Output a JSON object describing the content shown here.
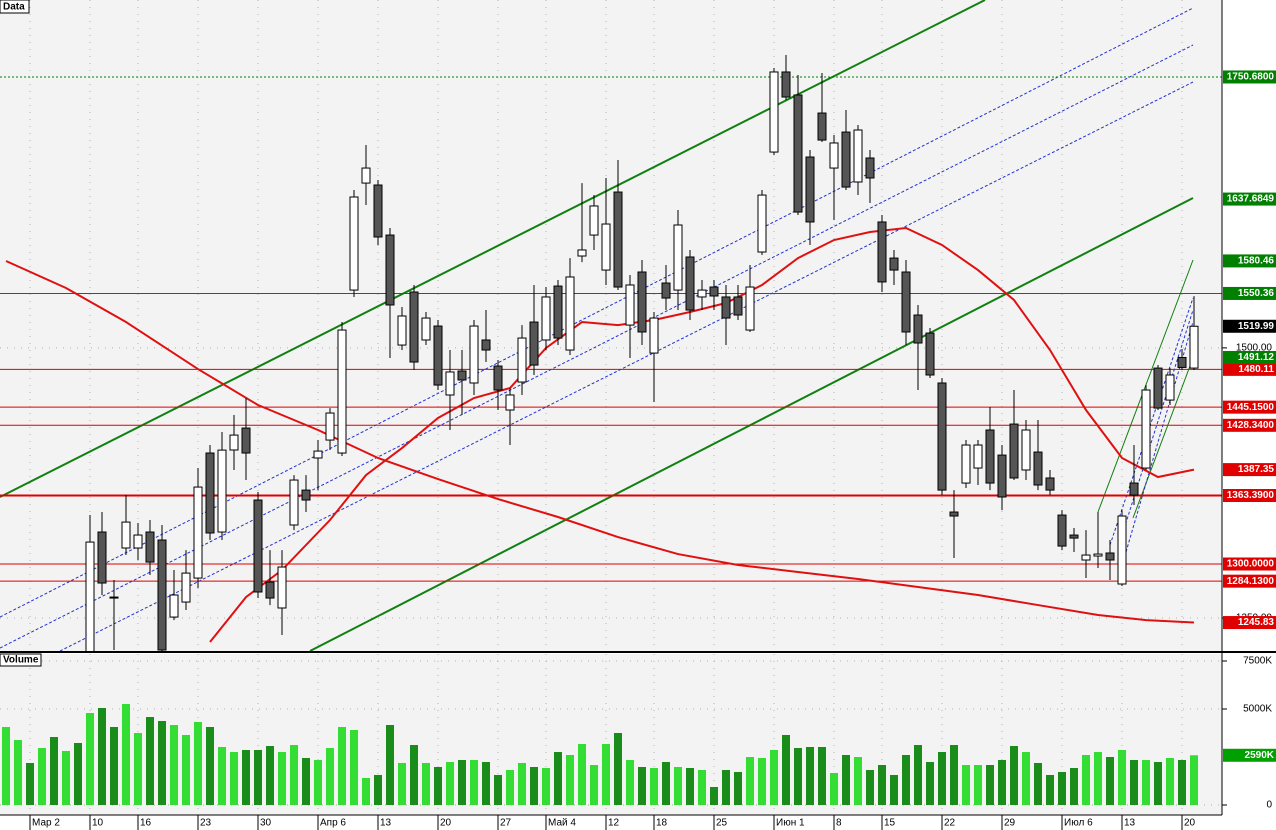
{
  "chart_data": {
    "type": "candlestick",
    "panel_title": "Data",
    "grid": true,
    "categories": [
      null,
      null,
      null,
      "Мар 2",
      null,
      null,
      null,
      null,
      "10",
      null,
      null,
      null,
      "16",
      null,
      null,
      null,
      null,
      "23",
      null,
      null,
      null,
      null,
      "30",
      null,
      null,
      null,
      null,
      "Апр 6",
      null,
      null,
      null,
      null,
      "13",
      null,
      null,
      null,
      null,
      "20",
      null,
      null,
      null,
      null,
      "27",
      null,
      null,
      null,
      "Май 4",
      null,
      null,
      null,
      null,
      "12",
      null,
      null,
      null,
      "18",
      null,
      null,
      null,
      null,
      "25",
      null,
      null,
      null,
      null,
      "Июн 1",
      null,
      null,
      null,
      null,
      "8",
      null,
      null,
      null,
      "15",
      null,
      null,
      null,
      null,
      "22",
      null,
      null,
      null,
      null,
      "29",
      null,
      null,
      null,
      null,
      "Июл 6",
      null,
      null,
      null,
      null,
      "13",
      null,
      null,
      null,
      null,
      "20"
    ],
    "ohlc": [
      null,
      null,
      null,
      null,
      null,
      null,
      null,
      [
        1202,
        1345.3,
        1192.6,
        1320.3
      ],
      [
        1329.6,
        1348.1,
        1271.3,
        1282.4
      ],
      [
        1269.4,
        1285.2,
        1220.4,
        1268.5
      ],
      [
        1314.8,
        1363.8,
        1308.3,
        1338.8
      ],
      [
        1314.8,
        1337.9,
        1303.7,
        1326.8
      ],
      [
        1329.6,
        1340.7,
        1289.8,
        1301.8
      ],
      [
        1322.2,
        1336.1,
        1218.5,
        1220.4
      ],
      [
        1250.9,
        1294.4,
        1248.1,
        1271.3
      ],
      [
        1264.8,
        1312.9,
        1257.4,
        1291.6
      ],
      [
        1287.0,
        1388.8,
        1277.8,
        1371.2
      ],
      [
        1402.7,
        1410.1,
        1322.2,
        1328.7
      ],
      [
        1329.6,
        1422.1,
        1322.2,
        1405.4
      ],
      [
        1405.5,
        1437.9,
        1387.0,
        1419.3
      ],
      [
        1425.8,
        1453.6,
        1377.7,
        1402.7
      ],
      [
        1359.2,
        1366.6,
        1268.5,
        1274.1
      ],
      [
        1283.3,
        1312.9,
        1262.0,
        1268.5
      ],
      [
        1259.3,
        1312.9,
        1234.3,
        1297.2
      ],
      [
        1336.1,
        1382.3,
        1331.4,
        1377.7
      ],
      [
        1368.4,
        1382.3,
        1348.1,
        1359.2
      ],
      [
        1398.1,
        1414.7,
        1368.4,
        1404.5
      ],
      [
        1414.7,
        1444.3,
        1405.5,
        1439.7
      ],
      [
        1402.7,
        1523.9,
        1399.9,
        1516.5
      ],
      [
        1553.5,
        1646.1,
        1547.1,
        1639.6
      ],
      [
        1652.5,
        1687.7,
        1632.2,
        1666.4
      ],
      [
        1650.7,
        1655.3,
        1595.2,
        1602.6
      ],
      [
        1604.4,
        1610.9,
        1490.6,
        1539.7
      ],
      [
        1502.6,
        1537.8,
        1498.0,
        1529.5
      ],
      [
        1551.7,
        1558.2,
        1479.5,
        1486.9
      ],
      [
        1507.3,
        1533.2,
        1502.6,
        1527.6
      ],
      [
        1520.2,
        1525.8,
        1461.0,
        1465.6
      ],
      [
        1456.4,
        1498.0,
        1424.0,
        1477.7
      ],
      [
        1478.6,
        1498.0,
        1437.9,
        1470.3
      ],
      [
        1467.5,
        1525.8,
        1456.4,
        1520.2
      ],
      [
        1507.3,
        1535.0,
        1486.9,
        1498.0
      ],
      [
        1483.2,
        1488.8,
        1442.5,
        1461.0
      ],
      [
        1442.5,
        1462.8,
        1410.1,
        1456.4
      ],
      [
        1468.4,
        1521.1,
        1456.4,
        1509.1
      ],
      [
        1523.9,
        1558.2,
        1474.9,
        1484.1
      ],
      [
        1507.3,
        1556.3,
        1498.0,
        1547.1
      ],
      [
        1557.2,
        1562.8,
        1502.6,
        1509.1
      ],
      [
        1498.0,
        1583.1,
        1493.4,
        1565.6
      ],
      [
        1585.0,
        1652.5,
        1579.4,
        1590.6
      ],
      [
        1604.4,
        1641.4,
        1590.6,
        1631.3
      ],
      [
        1572.0,
        1657.2,
        1558.2,
        1614.6
      ],
      [
        1644.2,
        1673.8,
        1553.5,
        1556.3
      ],
      [
        1521.1,
        1567.4,
        1490.6,
        1558.2
      ],
      [
        1570.2,
        1581.3,
        1502.6,
        1514.7
      ],
      [
        1495.2,
        1533.2,
        1449.9,
        1527.6
      ],
      [
        1560.0,
        1576.7,
        1535.0,
        1546.1
      ],
      [
        1553.5,
        1627.6,
        1535.0,
        1613.7
      ],
      [
        1584.1,
        1590.6,
        1525.8,
        1535.0
      ],
      [
        1547.1,
        1562.8,
        1535.0,
        1553.5
      ],
      [
        1556.3,
        1562.8,
        1535.0,
        1548.0
      ],
      [
        1547.1,
        1558.2,
        1502.6,
        1527.6
      ],
      [
        1547.1,
        1558.2,
        1525.8,
        1530.4
      ],
      [
        1516.5,
        1576.7,
        1514.7,
        1556.3
      ],
      [
        1588.7,
        1646.1,
        1585.9,
        1641.4
      ],
      [
        1681.2,
        1759.0,
        1678.4,
        1755.3
      ],
      [
        1755.3,
        1771.0,
        1729.4,
        1732.1
      ],
      [
        1734.0,
        1752.5,
        1622.9,
        1625.7
      ],
      [
        1676.6,
        1683.1,
        1595.2,
        1616.5
      ],
      [
        1717.3,
        1754.3,
        1690.5,
        1692.3
      ],
      [
        1666.4,
        1697.0,
        1618.3,
        1689.6
      ],
      [
        1699.7,
        1720.1,
        1646.1,
        1648.8
      ],
      [
        1653.5,
        1706.2,
        1641.4,
        1701.6
      ],
      [
        1675.7,
        1683.1,
        1634.0,
        1657.2
      ],
      [
        1616.5,
        1622.9,
        1551.7,
        1561.0
      ],
      [
        1583.1,
        1590.6,
        1558.2,
        1572.0
      ],
      [
        1570.2,
        1581.3,
        1502.6,
        1514.7
      ],
      [
        1530.4,
        1539.7,
        1461.0,
        1504.5
      ],
      [
        1513.7,
        1518.4,
        1472.1,
        1474.9
      ],
      [
        1467.5,
        1472.1,
        1363.8,
        1368.4
      ],
      [
        1348.1,
        1368.4,
        1305.5,
        1344.4
      ],
      [
        1374.9,
        1414.7,
        1370.3,
        1410.1
      ],
      [
        1388.8,
        1414.7,
        1373.1,
        1410.1
      ],
      [
        1424.0,
        1445.3,
        1368.4,
        1374.9
      ],
      [
        1400.8,
        1410.1,
        1349.9,
        1362.0
      ],
      [
        1429.5,
        1461.0,
        1377.7,
        1379.6
      ],
      [
        1387.0,
        1433.2,
        1377.7,
        1424.0
      ],
      [
        1403.6,
        1433.2,
        1368.4,
        1373.1
      ],
      [
        1379.6,
        1387.0,
        1363.8,
        1368.4
      ],
      [
        1345.3,
        1349.9,
        1312.9,
        1316.6
      ],
      [
        1326.8,
        1333.3,
        1311.1,
        1324.0
      ],
      [
        1303.7,
        1331.4,
        1287.0,
        1308.3
      ],
      [
        1307.4,
        1348.1,
        1296.3,
        1309.2
      ],
      [
        1310.2,
        1322.2,
        1285.2,
        1303.7
      ],
      [
        1281.5,
        1349.9,
        1279.6,
        1344.4
      ],
      [
        1374.9,
        1410.1,
        1354.6,
        1363.8
      ],
      [
        1388.8,
        1465.6,
        1387.0,
        1461.0
      ],
      [
        1481.3,
        1484.1,
        1442.5,
        1444.3
      ],
      [
        1451.7,
        1481.3,
        1447.1,
        1474.9
      ],
      [
        1491.1,
        1498.9,
        1479.5,
        1481.9
      ],
      [
        1481.3,
        1547.9,
        1479.5,
        1519.99
      ]
    ],
    "up_color": "#ffffff",
    "down_color": "#555555",
    "ylim": [
      1219.5,
      1821.9
    ],
    "yticks": [
      {
        "value": 1500,
        "label": "1500.00"
      },
      {
        "value": 1250,
        "label": "1250.00"
      }
    ],
    "overlays": [
      {
        "color": "#e01010",
        "x": [
          0,
          5,
          10,
          16,
          21,
          26,
          31,
          36,
          41,
          46,
          51,
          56,
          61,
          66,
          71,
          76,
          81,
          86,
          91,
          95,
          99
        ],
        "values": [
          1580.4,
          1555.4,
          1523.9,
          1480.4,
          1447.1,
          1424.0,
          1398.1,
          1378.6,
          1360.1,
          1343.5,
          1324.9,
          1309.2,
          1299.1,
          1292.6,
          1286.1,
          1278.7,
          1271.3,
          1262.0,
          1252.8,
          1248.1,
          1245.83
        ]
      },
      {
        "color": "#e01010",
        "x": [
          17,
          20,
          23,
          27,
          30,
          33,
          36,
          39,
          42,
          45,
          48,
          51,
          54,
          57,
          60,
          63,
          66,
          69,
          72,
          75,
          78,
          81,
          84,
          87,
          90,
          93,
          96,
          99
        ],
        "values": [
          1227.8,
          1269.4,
          1294.4,
          1340.7,
          1382.3,
          1407.3,
          1435.1,
          1453.6,
          1462.8,
          1499.9,
          1523.9,
          1521.1,
          1525.8,
          1533.2,
          1541.5,
          1558.2,
          1583.1,
          1599.8,
          1607.2,
          1610.9,
          1595.2,
          1572.0,
          1544.3,
          1498.0,
          1442.5,
          1398.1,
          1380.5,
          1387.35
        ]
      }
    ],
    "levels": [
      {
        "value": 1750.68,
        "label": "1750.6800",
        "color": "#008000",
        "style": "dotted",
        "width": 1
      },
      {
        "value": 1550.36,
        "label": "1550.36",
        "color": "#008000",
        "style": "solid",
        "width": 1
      },
      {
        "value": 1480.11,
        "label": "1480.11",
        "color": "#e00000",
        "style": "solid",
        "width": 1
      },
      {
        "value": 1445.15,
        "label": "1445.1500",
        "color": "#e00000",
        "style": "solid",
        "width": 1
      },
      {
        "value": 1428.34,
        "label": "1428.3400",
        "color": "#e00000",
        "style": "solid",
        "width": 1
      },
      {
        "value": 1363.39,
        "label": "1363.3900",
        "color": "#e00000",
        "style": "solid",
        "width": 2
      },
      {
        "value": 1300,
        "label": "1300.0000",
        "color": "#e00000",
        "style": "solid",
        "width": 1
      },
      {
        "value": 1284.13,
        "label": "1284.1300",
        "color": "#e00000",
        "style": "solid",
        "width": 1
      }
    ],
    "tags": [
      {
        "value": 1637.6849,
        "label": "1637.6849",
        "color": "#008000"
      },
      {
        "value": 1580.46,
        "label": "1580.46",
        "color": "#008000"
      },
      {
        "value": 1519.99,
        "label": "1519.99",
        "color": "#000000"
      },
      {
        "value": 1491.12,
        "label": "1491.12",
        "color": "#008000"
      },
      {
        "value": 1387.35,
        "label": "1387.35",
        "color": "#e00000"
      },
      {
        "value": 1245.83,
        "label": "1245.83",
        "color": "#e00000"
      }
    ],
    "volume": {
      "title": "Volume",
      "ylim": [
        -521,
        7917
      ],
      "yticks": [
        {
          "value": 7500,
          "label": "7500K"
        },
        {
          "value": 5000,
          "label": "5000K"
        },
        0
      ],
      "tag": {
        "value": 2590,
        "label": "2590K",
        "color": "#00a000"
      },
      "values": [
        4062,
        3385,
        2188,
        2969,
        3542,
        2813,
        3229,
        4792,
        5052,
        4062,
        5260,
        3750,
        4583,
        4375,
        4167,
        3646,
        4323,
        4062,
        3021,
        2760,
        2865,
        2865,
        3073,
        2760,
        3125,
        2448,
        2344,
        2969,
        4062,
        3906,
        1406,
        1563,
        4167,
        2188,
        3125,
        2188,
        1979,
        2240,
        2344,
        2344,
        2240,
        1563,
        1823,
        2188,
        1979,
        1927,
        2760,
        2604,
        3177,
        2083,
        3177,
        3750,
        2344,
        1979,
        1927,
        2240,
        1979,
        1927,
        1823,
        938,
        1823,
        1719,
        2500,
        2448,
        2865,
        3646,
        2969,
        3021,
        3021,
        1667,
        2604,
        2500,
        1823,
        2083,
        1563,
        2604,
        3125,
        2240,
        2760,
        3125,
        2083,
        2083,
        2083,
        2344,
        3073,
        2760,
        2188,
        1563,
        1719,
        1927,
        2604,
        2760,
        2500,
        2865,
        2344,
        2344,
        2240,
        2448,
        2344,
        2590
      ],
      "colors": [
        "#33dd33",
        "#33dd33",
        "#1a8c1a",
        "#33dd33",
        "#1a8c1a",
        "#33dd33",
        "#1a8c1a",
        "#33dd33",
        "#1a8c1a",
        "#1a8c1a",
        "#33dd33",
        "#33dd33",
        "#1a8c1a",
        "#1a8c1a",
        "#33dd33",
        "#33dd33",
        "#33dd33",
        "#1a8c1a",
        "#33dd33",
        "#33dd33",
        "#1a8c1a",
        "#1a8c1a",
        "#1a8c1a",
        "#33dd33",
        "#33dd33",
        "#1a8c1a",
        "#33dd33",
        "#33dd33",
        "#33dd33",
        "#33dd33",
        "#33dd33",
        "#1a8c1a",
        "#1a8c1a",
        "#33dd33",
        "#1a8c1a",
        "#33dd33",
        "#1a8c1a",
        "#33dd33",
        "#1a8c1a",
        "#33dd33",
        "#1a8c1a",
        "#1a8c1a",
        "#33dd33",
        "#33dd33",
        "#1a8c1a",
        "#33dd33",
        "#1a8c1a",
        "#33dd33",
        "#33dd33",
        "#33dd33",
        "#33dd33",
        "#1a8c1a",
        "#33dd33",
        "#1a8c1a",
        "#33dd33",
        "#1a8c1a",
        "#33dd33",
        "#1a8c1a",
        "#33dd33",
        "#1a8c1a",
        "#1a8c1a",
        "#1a8c1a",
        "#33dd33",
        "#33dd33",
        "#33dd33",
        "#1a8c1a",
        "#1a8c1a",
        "#1a8c1a",
        "#1a8c1a",
        "#33dd33",
        "#1a8c1a",
        "#33dd33",
        "#1a8c1a",
        "#1a8c1a",
        "#1a8c1a",
        "#1a8c1a",
        "#1a8c1a",
        "#1a8c1a",
        "#1a8c1a",
        "#1a8c1a",
        "#33dd33",
        "#33dd33",
        "#1a8c1a",
        "#1a8c1a",
        "#1a8c1a",
        "#33dd33",
        "#1a8c1a",
        "#1a8c1a",
        "#1a8c1a",
        "#1a8c1a",
        "#33dd33",
        "#33dd33",
        "#1a8c1a",
        "#33dd33",
        "#1a8c1a",
        "#33dd33",
        "#1a8c1a",
        "#33dd33",
        "#1a8c1a",
        "#33dd33"
      ]
    }
  }
}
